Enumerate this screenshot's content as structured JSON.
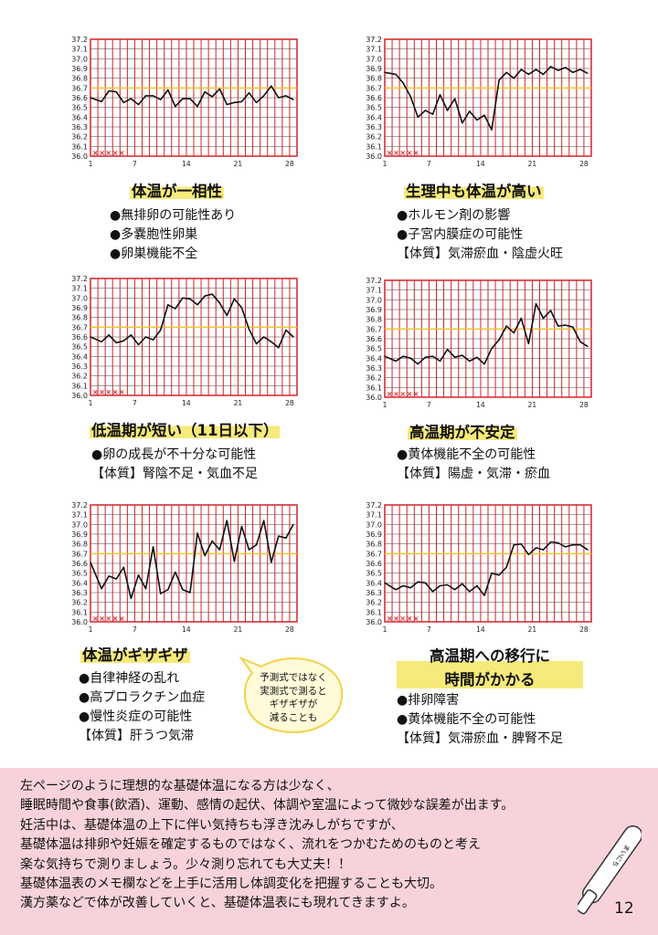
{
  "legend_marks": "×××××",
  "charts": [
    {
      "id": "uniform",
      "title": "体温が一相性",
      "bullets": [
        "●無排卵の可能性あり",
        "●多嚢胞性卵巣",
        "●卵巣機能不全"
      ],
      "chart_data": {
        "type": "line",
        "ylabels": [
          "37.2",
          "37.1",
          "37.0",
          "36.9",
          "36.8",
          "36.7",
          "36.6",
          "36.5",
          "36.4",
          "36.3",
          "36.2",
          "36.1",
          "36.0"
        ],
        "xlabels": [
          "1",
          "7",
          "14",
          "21",
          "28"
        ],
        "ylim": [
          36.0,
          37.2
        ],
        "x": [
          1,
          2,
          3,
          4,
          5,
          6,
          7,
          8,
          9,
          10,
          11,
          12,
          13,
          14,
          15,
          16,
          17,
          18,
          19,
          20,
          21,
          22,
          23,
          24,
          25,
          26,
          27,
          28
        ],
        "values": [
          36.6,
          36.56,
          36.67,
          36.66,
          36.55,
          36.59,
          36.53,
          36.62,
          36.62,
          36.58,
          36.68,
          36.51,
          36.59,
          36.59,
          36.51,
          36.66,
          36.61,
          36.69,
          36.53,
          36.55,
          36.56,
          36.65,
          36.55,
          36.62,
          36.72,
          36.6,
          36.62,
          36.58
        ],
        "baseline": 36.7,
        "highlight_bands": [
          [
            1,
            7
          ],
          [
            14,
            21
          ]
        ]
      }
    },
    {
      "id": "menstruation",
      "title": "生理中も体温が高い",
      "bullets": [
        "●ホルモン剤の影響",
        "●子宮内膜症の可能性",
        "【体質】気滞瘀血・陰虚火旺"
      ],
      "chart_data": {
        "type": "line",
        "ylabels": [
          "37.2",
          "37.1",
          "37.0",
          "36.9",
          "36.8",
          "36.7",
          "36.6",
          "36.5",
          "36.4",
          "36.3",
          "36.2",
          "36.1",
          "36.0"
        ],
        "xlabels": [
          "1",
          "7",
          "14",
          "21",
          "28"
        ],
        "ylim": [
          36.0,
          37.2
        ],
        "x": [
          1,
          2,
          3,
          4,
          5,
          6,
          7,
          8,
          9,
          10,
          11,
          12,
          13,
          14,
          15,
          16,
          17,
          18,
          19,
          20,
          21,
          22,
          23,
          24,
          25,
          26,
          27,
          28
        ],
        "values": [
          36.86,
          36.84,
          36.75,
          36.61,
          36.4,
          36.47,
          36.43,
          36.63,
          36.47,
          36.59,
          36.34,
          36.46,
          36.37,
          36.42,
          36.27,
          36.78,
          36.86,
          36.8,
          36.89,
          36.84,
          36.89,
          36.84,
          36.92,
          36.88,
          36.91,
          36.86,
          36.89,
          36.85
        ],
        "baseline": 36.7,
        "highlight_bands": [
          [
            1,
            7
          ],
          [
            14,
            21
          ]
        ]
      }
    },
    {
      "id": "short-high",
      "title": "低温期が短い（11日以下）",
      "bullets": [
        "●卵の成長が不十分な可能性",
        "【体質】腎陰不足・気血不足"
      ],
      "chart_data": {
        "type": "line",
        "ylabels": [
          "37.2",
          "37.1",
          "37.0",
          "36.9",
          "36.8",
          "36.7",
          "36.6",
          "36.5",
          "36.4",
          "36.3",
          "36.2",
          "36.1",
          "36.0"
        ],
        "xlabels": [
          "1",
          "7",
          "14",
          "21",
          "28"
        ],
        "ylim": [
          36.0,
          37.2
        ],
        "x": [
          1,
          2,
          3,
          4,
          5,
          6,
          7,
          8,
          9,
          10,
          11,
          12,
          13,
          14,
          15,
          16,
          17,
          18,
          19,
          20,
          21,
          22,
          23,
          24,
          25,
          26,
          27,
          28
        ],
        "values": [
          36.6,
          36.55,
          36.62,
          36.54,
          36.56,
          36.62,
          36.52,
          36.6,
          36.57,
          36.67,
          36.93,
          36.89,
          37.0,
          36.99,
          36.93,
          37.02,
          37.04,
          36.95,
          36.82,
          36.99,
          36.9,
          36.68,
          36.53,
          36.6,
          36.55,
          36.49,
          36.67,
          36.6
        ],
        "baseline": 36.7,
        "highlight_bands": [
          [
            1,
            7
          ],
          [
            14,
            21
          ]
        ]
      }
    },
    {
      "id": "unstable-high",
      "title": "高温期が不安定",
      "bullets": [
        "●黄体機能不全の可能性",
        "【体質】陽虚・気滞・瘀血"
      ],
      "chart_data": {
        "type": "line",
        "ylabels": [
          "37.2",
          "37.1",
          "37.0",
          "36.9",
          "36.8",
          "36.7",
          "36.6",
          "36.5",
          "36.4",
          "36.3",
          "36.2",
          "36.1",
          "36.0"
        ],
        "xlabels": [
          "1",
          "7",
          "14",
          "21",
          "28"
        ],
        "ylim": [
          36.0,
          37.2
        ],
        "x": [
          1,
          2,
          3,
          4,
          5,
          6,
          7,
          8,
          9,
          10,
          11,
          12,
          13,
          14,
          15,
          16,
          17,
          18,
          19,
          20,
          21,
          22,
          23,
          24,
          25,
          26,
          27,
          28
        ],
        "values": [
          36.42,
          36.37,
          36.42,
          36.4,
          36.34,
          36.41,
          36.42,
          36.37,
          36.49,
          36.41,
          36.43,
          36.37,
          36.41,
          36.34,
          36.5,
          36.59,
          36.73,
          36.66,
          36.81,
          36.55,
          36.96,
          36.81,
          36.89,
          36.73,
          36.74,
          36.72,
          36.57,
          36.52
        ],
        "baseline": 36.7,
        "highlight_bands": [
          [
            1,
            7
          ],
          [
            14,
            21
          ]
        ]
      }
    },
    {
      "id": "zigzag",
      "title": "体温がギザギザ",
      "bullets": [
        "●自律神経の乱れ",
        "●高プロラクチン血症",
        "●慢性炎症の可能性",
        "【体質】肝うつ気滞"
      ],
      "chart_data": {
        "type": "line",
        "ylabels": [
          "37.2",
          "37.1",
          "37.0",
          "36.9",
          "36.8",
          "36.7",
          "36.6",
          "36.5",
          "36.4",
          "36.3",
          "36.2",
          "36.1",
          "36.0"
        ],
        "xlabels": [
          "1",
          "7",
          "14",
          "21",
          "28"
        ],
        "ylim": [
          36.0,
          37.2
        ],
        "x": [
          1,
          2,
          3,
          4,
          5,
          6,
          7,
          8,
          9,
          10,
          11,
          12,
          13,
          14,
          15,
          16,
          17,
          18,
          19,
          20,
          21,
          22,
          23,
          24,
          25,
          26,
          27,
          28
        ],
        "values": [
          36.61,
          36.34,
          36.47,
          36.44,
          36.56,
          36.24,
          36.48,
          36.34,
          36.77,
          36.29,
          36.33,
          36.51,
          36.33,
          36.3,
          36.91,
          36.68,
          36.83,
          36.74,
          37.04,
          36.62,
          36.98,
          36.74,
          36.79,
          37.04,
          36.61,
          36.88,
          36.86,
          37.0
        ],
        "baseline": 36.7,
        "highlight_bands": [
          [
            1,
            7
          ],
          [
            14,
            21
          ]
        ]
      }
    },
    {
      "id": "slow-transition",
      "title": "高温期への移行に\n時間がかかる",
      "bullets": [
        "●排卵障害",
        "●黄体機能不全の可能性",
        "【体質】気滞瘀血・脾腎不足"
      ],
      "chart_data": {
        "type": "line",
        "ylabels": [
          "37.2",
          "37.1",
          "37.0",
          "36.9",
          "36.8",
          "36.7",
          "36.6",
          "36.5",
          "36.4",
          "36.3",
          "36.2",
          "36.1",
          "36.0"
        ],
        "xlabels": [
          "1",
          "7",
          "14",
          "21",
          "28"
        ],
        "ylim": [
          36.0,
          37.2
        ],
        "x": [
          1,
          2,
          3,
          4,
          5,
          6,
          7,
          8,
          9,
          10,
          11,
          12,
          13,
          14,
          15,
          16,
          17,
          18,
          19,
          20,
          21,
          22,
          23,
          24,
          25,
          26,
          27,
          28
        ],
        "values": [
          36.4,
          36.33,
          36.37,
          36.35,
          36.41,
          36.4,
          36.31,
          36.37,
          36.38,
          36.33,
          36.39,
          36.31,
          36.37,
          36.27,
          36.5,
          36.48,
          36.56,
          36.79,
          36.8,
          36.69,
          36.76,
          36.74,
          36.82,
          36.81,
          36.77,
          36.79,
          36.79,
          36.74
        ],
        "baseline": 36.7,
        "highlight_bands": [
          [
            1,
            7
          ],
          [
            14,
            21
          ]
        ]
      }
    }
  ],
  "bubble": {
    "lines": [
      "予測式ではなく",
      "実測式で測ると",
      "ギザギザが",
      "減ることも"
    ]
  },
  "footer": {
    "lines": [
      "左ページのように理想的な基礎体温になる方は少なく、",
      "睡眠時間や食事(飲酒)、運動、感情の起伏、体調や室温によって微妙な誤差が出ます。",
      "妊活中は、基礎体温の上下に伴い気持ちも浮き沈みしがちですが、",
      "基礎体温は排卵や妊娠を確定するものではなく、流れをつかむためのものと考え",
      "楽な気持ちで測りましょう。少々測り忘れても大丈夫！！",
      "基礎体温表のメモ欄などを上手に活用し体調変化を把握することも大切。",
      "漢方薬などで体が改善していくと、基礎体温表にも現れてきますよ。"
    ],
    "page_number": "12",
    "thermometer_label": "まいにち"
  },
  "colors": {
    "grid_red": "#d2232a",
    "baseline_yellow": "#f2c32e",
    "highlight": "#f6ea7a",
    "footer_bg": "#f7d3d9",
    "band_fill": "#ffffff"
  }
}
